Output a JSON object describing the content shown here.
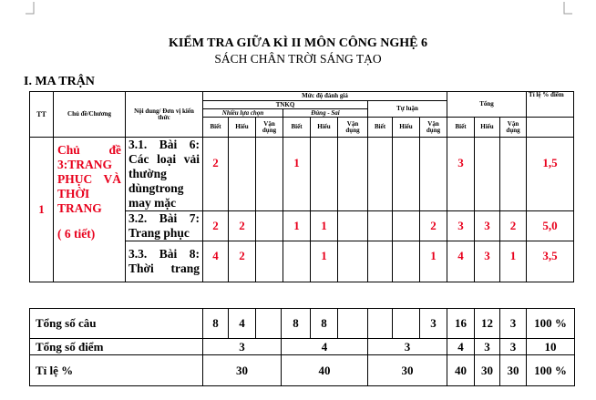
{
  "doc": {
    "title": "KIỂM TRA GIỮA KÌ II MÔN CÔNG NGHỆ 6",
    "subtitle": "SÁCH CHÂN TRỜI SÁNG TẠO",
    "section": "I. MA TRẬN"
  },
  "matrix": {
    "headers": {
      "tt": "TT",
      "topic": "Chủ đề/Chương",
      "content": "Nội dung/ Đơn vị kiến thức",
      "level": "Mức độ đánh giá",
      "tnkq": "TNKQ",
      "mc": "Nhiều lựa chọn",
      "ds": "Đúng - Sai",
      "tl": "Tự luận",
      "total": "Tổng",
      "ratio": "Tỉ lệ % điểm",
      "know": "Biết",
      "understand": "Hiểu",
      "apply": "Vận dụng"
    },
    "tt": "1",
    "topic": "Chủ đề 3:TRANG PHỤC VÀ THỜI TRANG",
    "topic_hours": "( 6 tiết)",
    "rows": [
      {
        "content": "3.1. Bài 6: Các loại vải thường dùngtrong may mặc",
        "cells": [
          "2",
          "",
          "",
          "1",
          "",
          "",
          "",
          "",
          "",
          "3",
          "",
          "",
          "1,5"
        ]
      },
      {
        "content": "3.2. Bài 7: Trang phục",
        "cells": [
          "2",
          "2",
          "",
          "1",
          "1",
          "",
          "",
          "",
          "2",
          "3",
          "3",
          "2",
          "5,0"
        ]
      },
      {
        "content": "3.3. Bài 8: Thời trang",
        "cells": [
          "4",
          "2",
          "",
          "",
          "1",
          "",
          "",
          "",
          "1",
          "4",
          "3",
          "1",
          "3,5"
        ]
      }
    ]
  },
  "summary": {
    "questions": {
      "label": "Tổng số câu",
      "cells": [
        "8",
        "4",
        "",
        "8",
        "8",
        "",
        "",
        "",
        "3",
        "16",
        "12",
        "3",
        "100 %"
      ]
    },
    "points": {
      "label": "Tổng số điểm",
      "cells": [
        "3",
        "4",
        "3",
        "4",
        "3",
        "3",
        "10"
      ]
    },
    "ratio": {
      "label": "Tỉ lệ %",
      "cells": [
        "30",
        "40",
        "30",
        "40",
        "30",
        "30",
        "100 %"
      ]
    }
  },
  "colors": {
    "value_red": "#e8001c"
  }
}
